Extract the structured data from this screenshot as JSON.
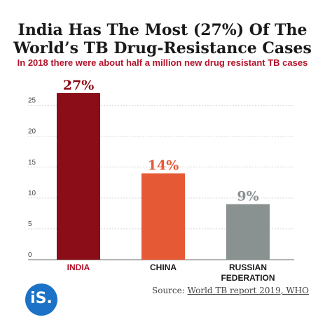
{
  "chart_data": {
    "type": "bar",
    "title": "India Has The Most (27%) Of The World’s TB Drug-Resistance Cases",
    "subtitle": "In 2018 there were about half a million new drug resistant TB cases",
    "categories": [
      "INDIA",
      "CHINA",
      "RUSSIAN FEDERATION"
    ],
    "category_lines": [
      [
        "INDIA"
      ],
      [
        "CHINA"
      ],
      [
        "RUSSIAN",
        "FEDERATION"
      ]
    ],
    "values": [
      27,
      14,
      9
    ],
    "data_labels": [
      "27%",
      "14%",
      "9%"
    ],
    "colors": [
      "#8b0d18",
      "#e55a35",
      "#8a9191"
    ],
    "label_colors": [
      "#8b0d18",
      "#e55a35",
      "#8a9191"
    ],
    "category_label_colors": [
      "#b3122a",
      "#1a1a1a",
      "#1a1a1a"
    ],
    "yticks": [
      0,
      5,
      10,
      15,
      20,
      25
    ],
    "ylim": [
      0,
      27
    ],
    "grid": true
  },
  "source": {
    "label": "Source:",
    "link_text": "World TB report 2019, WHO"
  },
  "logo": {
    "text": "iS."
  }
}
